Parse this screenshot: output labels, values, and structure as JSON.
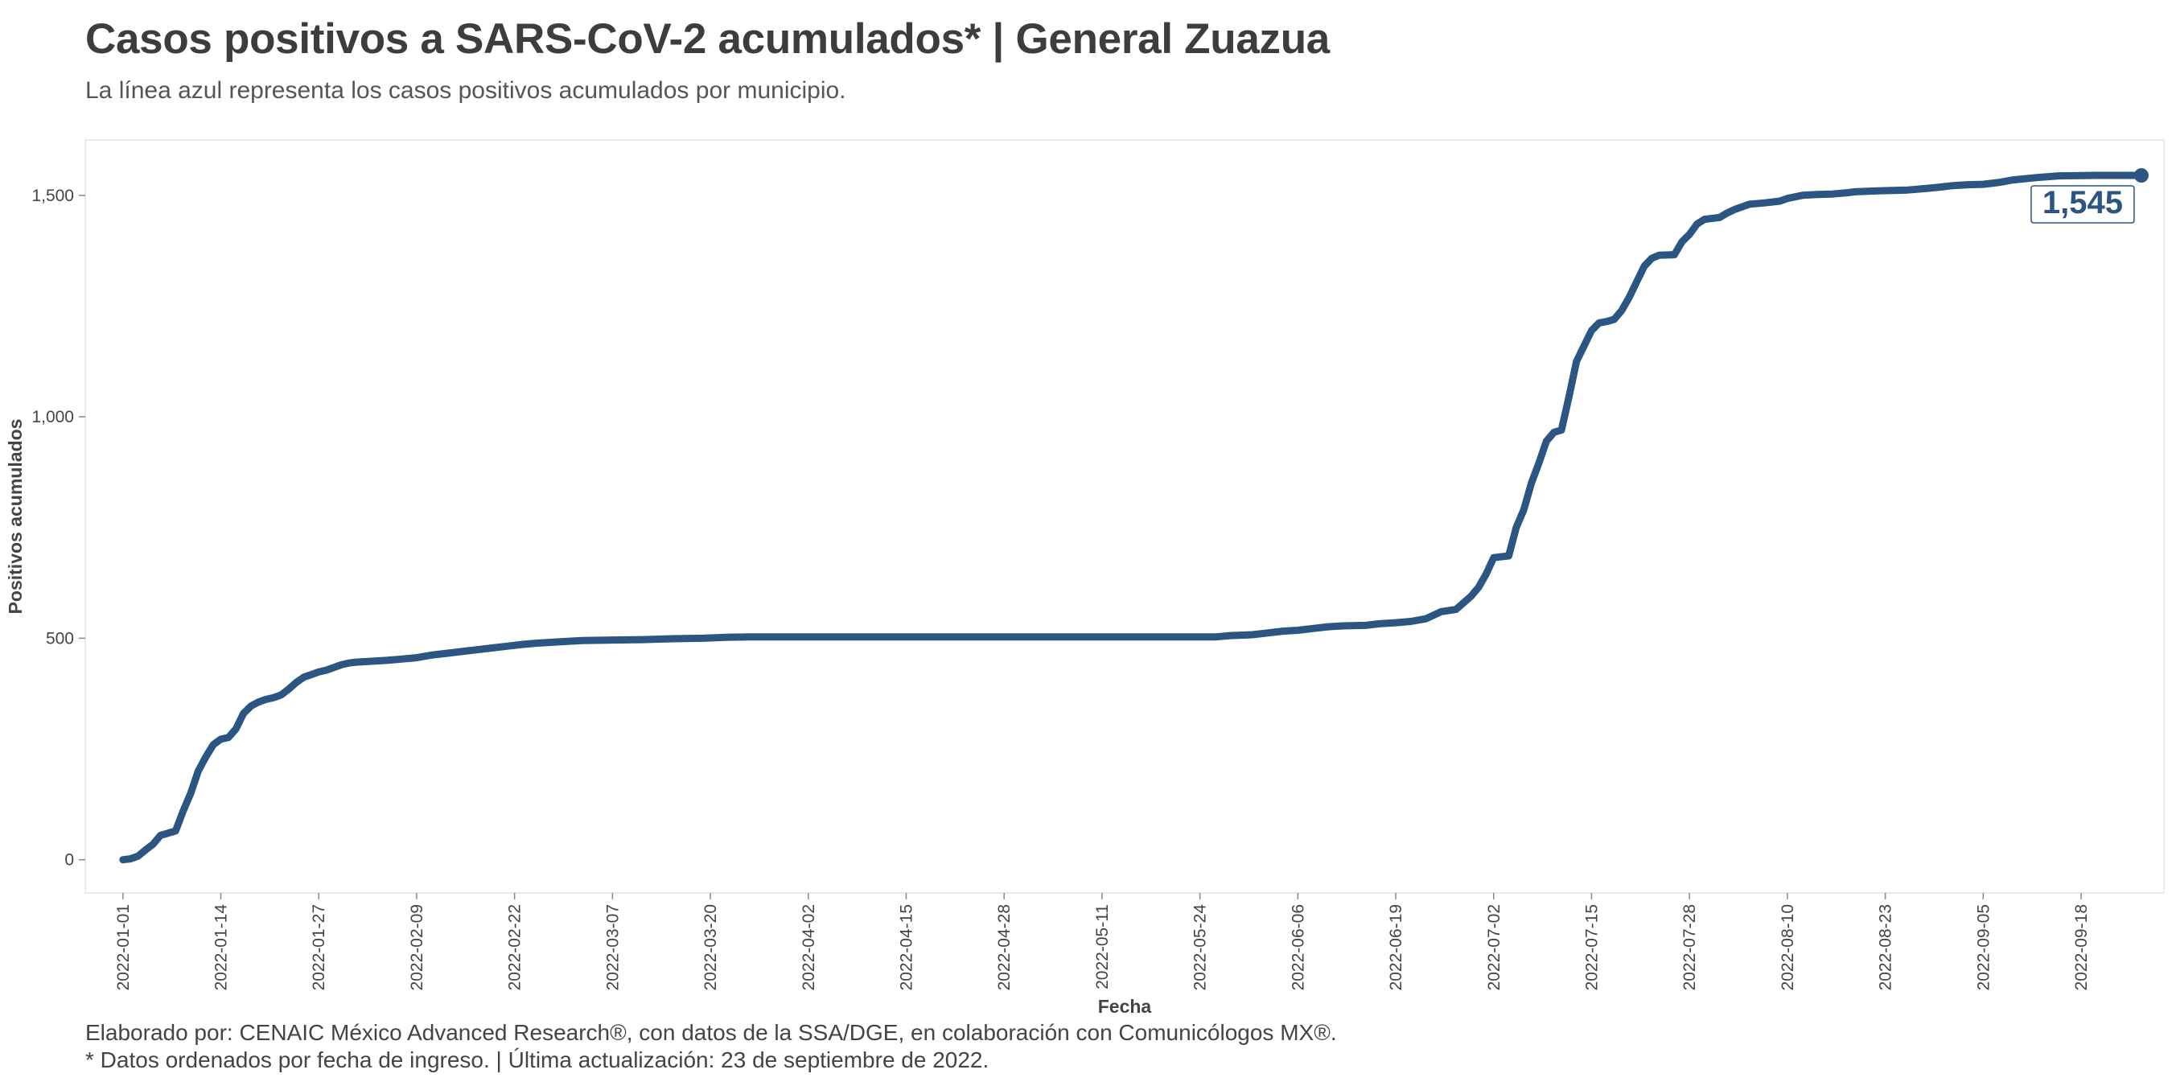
{
  "header": {
    "title": "Casos positivos a SARS-CoV-2 acumulados* | General Zuazua",
    "subtitle": "La línea azul representa los casos positivos acumulados por municipio."
  },
  "footer": {
    "caption1": "Elaborado por: CENAIC México Advanced Research®, con datos de la SSA/DGE, en colaboración con Comunicólogos MX®.",
    "caption2": "* Datos ordenados por fecha de ingreso. | Última actualización: 23 de septiembre de 2022."
  },
  "colors": {
    "line": "#2b5582",
    "panel_border": "#e3e3e3",
    "text": "#444444"
  },
  "chart_data": {
    "type": "line",
    "xlabel": "Fecha",
    "ylabel": "Positivos acumulados",
    "xlim": [
      "2021-12-27",
      "2022-09-29"
    ],
    "ylim": [
      -75,
      1625
    ],
    "grid": false,
    "y_ticks": [
      0,
      500,
      1000,
      1500
    ],
    "y_tick_labels": [
      "0",
      "500",
      "1,000",
      "1,500"
    ],
    "x_ticks": [
      "2022-01-01",
      "2022-01-14",
      "2022-01-27",
      "2022-02-09",
      "2022-02-22",
      "2022-03-07",
      "2022-03-20",
      "2022-04-02",
      "2022-04-15",
      "2022-04-28",
      "2022-05-11",
      "2022-05-24",
      "2022-06-06",
      "2022-06-19",
      "2022-07-02",
      "2022-07-15",
      "2022-07-28",
      "2022-08-10",
      "2022-08-23",
      "2022-09-05",
      "2022-09-18"
    ],
    "end_label": "1,545",
    "series": [
      {
        "points": [
          [
            "2022-01-01",
            0
          ],
          [
            "2022-01-02",
            2
          ],
          [
            "2022-01-03",
            8
          ],
          [
            "2022-01-04",
            22
          ],
          [
            "2022-01-05",
            35
          ],
          [
            "2022-01-06",
            55
          ],
          [
            "2022-01-07",
            60
          ],
          [
            "2022-01-08",
            65
          ],
          [
            "2022-01-09",
            110
          ],
          [
            "2022-01-10",
            150
          ],
          [
            "2022-01-11",
            200
          ],
          [
            "2022-01-12",
            232
          ],
          [
            "2022-01-13",
            260
          ],
          [
            "2022-01-14",
            272
          ],
          [
            "2022-01-15",
            276
          ],
          [
            "2022-01-16",
            295
          ],
          [
            "2022-01-17",
            330
          ],
          [
            "2022-01-18",
            347
          ],
          [
            "2022-01-19",
            356
          ],
          [
            "2022-01-20",
            362
          ],
          [
            "2022-01-21",
            366
          ],
          [
            "2022-01-22",
            372
          ],
          [
            "2022-01-23",
            385
          ],
          [
            "2022-01-24",
            400
          ],
          [
            "2022-01-25",
            412
          ],
          [
            "2022-01-26",
            418
          ],
          [
            "2022-01-27",
            424
          ],
          [
            "2022-01-28",
            428
          ],
          [
            "2022-01-29",
            434
          ],
          [
            "2022-01-30",
            440
          ],
          [
            "2022-01-31",
            444
          ],
          [
            "2022-02-01",
            446
          ],
          [
            "2022-02-03",
            448
          ],
          [
            "2022-02-05",
            450
          ],
          [
            "2022-02-07",
            453
          ],
          [
            "2022-02-09",
            456
          ],
          [
            "2022-02-11",
            462
          ],
          [
            "2022-02-13",
            466
          ],
          [
            "2022-02-15",
            470
          ],
          [
            "2022-02-17",
            474
          ],
          [
            "2022-02-19",
            478
          ],
          [
            "2022-02-21",
            482
          ],
          [
            "2022-02-23",
            486
          ],
          [
            "2022-02-25",
            489
          ],
          [
            "2022-02-27",
            491
          ],
          [
            "2022-03-01",
            493
          ],
          [
            "2022-03-03",
            495
          ],
          [
            "2022-03-07",
            496
          ],
          [
            "2022-03-11",
            497
          ],
          [
            "2022-03-15",
            499
          ],
          [
            "2022-03-19",
            500
          ],
          [
            "2022-03-22",
            502
          ],
          [
            "2022-03-25",
            503
          ],
          [
            "2022-04-10",
            503
          ],
          [
            "2022-05-01",
            503
          ],
          [
            "2022-05-20",
            503
          ],
          [
            "2022-05-26",
            503
          ],
          [
            "2022-05-28",
            506
          ],
          [
            "2022-05-31",
            508
          ],
          [
            "2022-06-02",
            512
          ],
          [
            "2022-06-04",
            516
          ],
          [
            "2022-06-06",
            518
          ],
          [
            "2022-06-08",
            522
          ],
          [
            "2022-06-10",
            526
          ],
          [
            "2022-06-12",
            528
          ],
          [
            "2022-06-15",
            529
          ],
          [
            "2022-06-17",
            533
          ],
          [
            "2022-06-19",
            535
          ],
          [
            "2022-06-21",
            538
          ],
          [
            "2022-06-23",
            544
          ],
          [
            "2022-06-24",
            552
          ],
          [
            "2022-06-25",
            560
          ],
          [
            "2022-06-27",
            565
          ],
          [
            "2022-06-28",
            580
          ],
          [
            "2022-06-29",
            595
          ],
          [
            "2022-06-30",
            615
          ],
          [
            "2022-07-01",
            645
          ],
          [
            "2022-07-02",
            682
          ],
          [
            "2022-07-04",
            686
          ],
          [
            "2022-07-05",
            750
          ],
          [
            "2022-07-06",
            790
          ],
          [
            "2022-07-07",
            850
          ],
          [
            "2022-07-08",
            895
          ],
          [
            "2022-07-09",
            945
          ],
          [
            "2022-07-10",
            965
          ],
          [
            "2022-07-11",
            970
          ],
          [
            "2022-07-12",
            1045
          ],
          [
            "2022-07-13",
            1125
          ],
          [
            "2022-07-14",
            1160
          ],
          [
            "2022-07-15",
            1195
          ],
          [
            "2022-07-16",
            1212
          ],
          [
            "2022-07-17",
            1215
          ],
          [
            "2022-07-18",
            1220
          ],
          [
            "2022-07-19",
            1240
          ],
          [
            "2022-07-20",
            1270
          ],
          [
            "2022-07-21",
            1305
          ],
          [
            "2022-07-22",
            1340
          ],
          [
            "2022-07-23",
            1358
          ],
          [
            "2022-07-24",
            1365
          ],
          [
            "2022-07-26",
            1366
          ],
          [
            "2022-07-27",
            1395
          ],
          [
            "2022-07-28",
            1412
          ],
          [
            "2022-07-29",
            1435
          ],
          [
            "2022-07-30",
            1446
          ],
          [
            "2022-08-01",
            1450
          ],
          [
            "2022-08-02",
            1460
          ],
          [
            "2022-08-03",
            1468
          ],
          [
            "2022-08-05",
            1480
          ],
          [
            "2022-08-07",
            1483
          ],
          [
            "2022-08-09",
            1487
          ],
          [
            "2022-08-10",
            1493
          ],
          [
            "2022-08-12",
            1500
          ],
          [
            "2022-08-14",
            1502
          ],
          [
            "2022-08-16",
            1503
          ],
          [
            "2022-08-18",
            1506
          ],
          [
            "2022-08-19",
            1508
          ],
          [
            "2022-08-22",
            1510
          ],
          [
            "2022-08-26",
            1512
          ],
          [
            "2022-08-28",
            1515
          ],
          [
            "2022-08-30",
            1518
          ],
          [
            "2022-09-01",
            1522
          ],
          [
            "2022-09-03",
            1524
          ],
          [
            "2022-09-05",
            1525
          ],
          [
            "2022-09-07",
            1529
          ],
          [
            "2022-09-09",
            1535
          ],
          [
            "2022-09-12",
            1540
          ],
          [
            "2022-09-15",
            1544
          ],
          [
            "2022-09-20",
            1545
          ],
          [
            "2022-09-26",
            1545
          ]
        ]
      }
    ]
  }
}
